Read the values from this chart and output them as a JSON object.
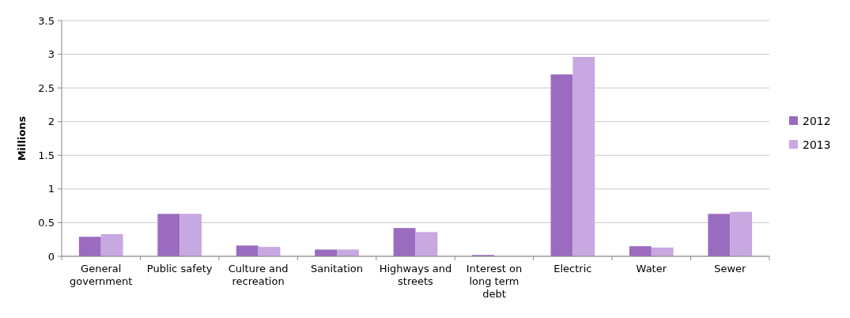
{
  "chart_data": {
    "type": "bar",
    "ylabel": "Millions",
    "categories": [
      "General government",
      "Public safety",
      "Culture and recreation",
      "Sanitation",
      "Highways and streets",
      "Interest on long term debt",
      "Electric",
      "Water",
      "Sewer"
    ],
    "series": [
      {
        "name": "2012",
        "color": "#9b6bbf",
        "values": [
          0.29,
          0.63,
          0.16,
          0.1,
          0.42,
          0.02,
          2.7,
          0.15,
          0.63
        ]
      },
      {
        "name": "2013",
        "color": "#c8a8e0",
        "values": [
          0.33,
          0.63,
          0.14,
          0.1,
          0.36,
          0,
          2.96,
          0.13,
          0.66
        ]
      }
    ],
    "ylim": [
      0,
      3.5
    ],
    "yticks": [
      0,
      0.5,
      1,
      1.5,
      2,
      2.5,
      3,
      3.5
    ],
    "grid": "y",
    "legend": "right"
  }
}
